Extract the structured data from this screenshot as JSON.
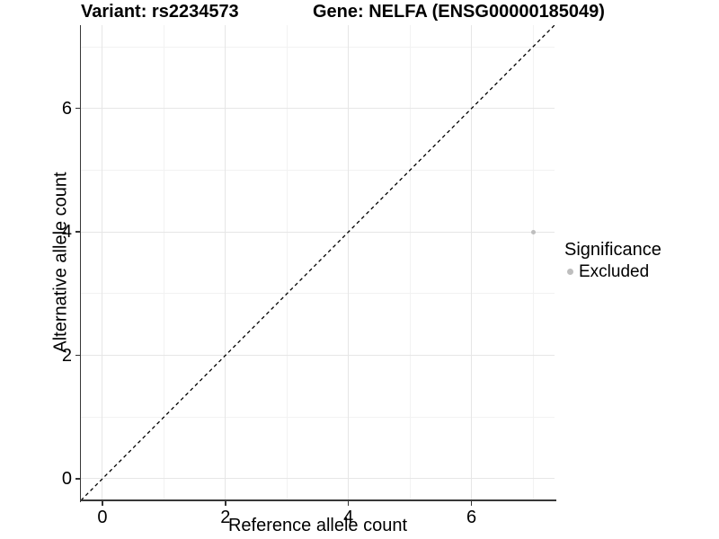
{
  "chart_data": {
    "type": "scatter",
    "title_left": "Variant: rs2234573",
    "title_right": "Gene: NELFA (ENSG00000185049)",
    "xlabel": "Reference allele count",
    "ylabel": "Alternative allele count",
    "xlim": [
      -0.35,
      7.35
    ],
    "ylim": [
      -0.35,
      7.35
    ],
    "xticks": [
      0,
      2,
      4,
      6
    ],
    "yticks": [
      0,
      2,
      4,
      6
    ],
    "minor_xticks": [
      1,
      3,
      5,
      7
    ],
    "minor_yticks": [
      1,
      3,
      5,
      7
    ],
    "grid": true,
    "reference_line": {
      "type": "identity y=x",
      "style": "dashed",
      "color": "#000000"
    },
    "series": [
      {
        "name": "Excluded",
        "color": "#bebebe",
        "points": [
          {
            "x": 7,
            "y": 4
          }
        ]
      }
    ],
    "legend": {
      "title": "Significance",
      "position": "right",
      "entries": [
        {
          "label": "Excluded",
          "color": "#bebebe"
        }
      ]
    },
    "style": {
      "background": "#ffffff",
      "grid_major": "#e6e6e6",
      "grid_minor": "#f2f2f2",
      "axis_color": "#383838",
      "tick_color": "#333333",
      "point_color": "#bebebe"
    }
  }
}
